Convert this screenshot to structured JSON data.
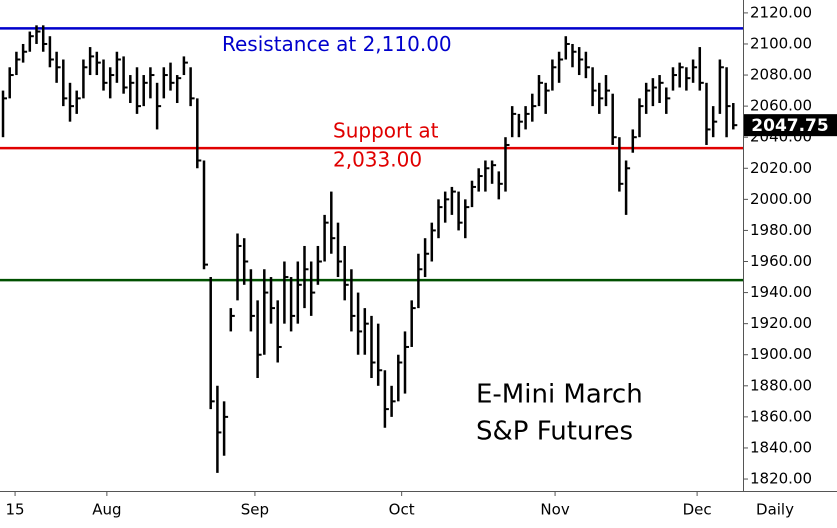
{
  "chart_data": {
    "type": "ohlc",
    "title_lines": [
      "E-Mini March",
      "S&P Futures"
    ],
    "period_label": "Daily",
    "color": "#000000",
    "high": [
      2070,
      2085,
      2095,
      2100,
      2108,
      2112,
      2112,
      2105,
      2095,
      2090,
      2075,
      2070,
      2090,
      2098,
      2095,
      2090,
      2085,
      2095,
      2092,
      2080,
      2085,
      2080,
      2085,
      2075,
      2085,
      2088,
      2080,
      2092,
      2085,
      2065,
      2025,
      1950,
      1880,
      1870,
      1930,
      1978,
      1975,
      1955,
      1935,
      1955,
      1950,
      1935,
      1960,
      1950,
      1960,
      1970,
      1960,
      1970,
      1990,
      2005,
      1985,
      1970,
      1955,
      1940,
      1930,
      1925,
      1920,
      1890,
      1880,
      1900,
      1915,
      1935,
      1965,
      1975,
      1985,
      2000,
      2005,
      2008,
      2005,
      2000,
      2012,
      2020,
      2025,
      2025,
      2018,
      2040,
      2060,
      2055,
      2060,
      2068,
      2080,
      2075,
      2090,
      2095,
      2105,
      2100,
      2098,
      2095,
      2085,
      2075,
      2080,
      2068,
      2040,
      2025,
      2045,
      2065,
      2075,
      2078,
      2080,
      2072,
      2085,
      2088,
      2085,
      2090,
      2098,
      2075,
      2060,
      2090,
      2085,
      2062
    ],
    "low": [
      2040,
      2065,
      2080,
      2088,
      2095,
      2100,
      2095,
      2085,
      2075,
      2060,
      2050,
      2055,
      2065,
      2080,
      2080,
      2070,
      2065,
      2075,
      2068,
      2062,
      2055,
      2060,
      2065,
      2045,
      2065,
      2070,
      2062,
      2080,
      2060,
      2020,
      1955,
      1865,
      1824,
      1835,
      1915,
      1935,
      1945,
      1915,
      1885,
      1900,
      1920,
      1895,
      1920,
      1915,
      1920,
      1930,
      1925,
      1945,
      1960,
      1965,
      1950,
      1935,
      1915,
      1900,
      1900,
      1885,
      1880,
      1853,
      1860,
      1870,
      1875,
      1905,
      1930,
      1950,
      1960,
      1975,
      1985,
      1990,
      1980,
      1975,
      1995,
      2005,
      2005,
      2010,
      2000,
      2005,
      2040,
      2040,
      2045,
      2050,
      2060,
      2055,
      2070,
      2075,
      2090,
      2085,
      2080,
      2078,
      2060,
      2055,
      2060,
      2035,
      2005,
      1990,
      2030,
      2040,
      2055,
      2060,
      2062,
      2055,
      2070,
      2072,
      2070,
      2075,
      2070,
      2035,
      2040,
      2055,
      2040,
      2045
    ],
    "close": [
      2065,
      2080,
      2090,
      2095,
      2105,
      2108,
      2100,
      2090,
      2085,
      2065,
      2060,
      2065,
      2085,
      2092,
      2088,
      2075,
      2080,
      2090,
      2072,
      2075,
      2060,
      2075,
      2080,
      2060,
      2080,
      2075,
      2078,
      2088,
      2065,
      2025,
      1958,
      1870,
      1850,
      1860,
      1925,
      1970,
      1960,
      1925,
      1900,
      1940,
      1930,
      1905,
      1950,
      1925,
      1945,
      1955,
      1940,
      1960,
      1985,
      1975,
      1960,
      1945,
      1925,
      1915,
      1920,
      1895,
      1890,
      1865,
      1870,
      1895,
      1905,
      1930,
      1955,
      1965,
      1980,
      1995,
      2000,
      2005,
      1985,
      1995,
      2008,
      2015,
      2020,
      2022,
      2010,
      2035,
      2055,
      2050,
      2055,
      2060,
      2075,
      2070,
      2085,
      2090,
      2100,
      2095,
      2090,
      2085,
      2070,
      2065,
      2070,
      2040,
      2010,
      2020,
      2040,
      2060,
      2070,
      2072,
      2075,
      2065,
      2080,
      2085,
      2078,
      2085,
      2075,
      2045,
      2050,
      2085,
      2060,
      2047.75
    ],
    "levels": [
      {
        "name": "Resistance at 2,110.00",
        "value": 2110,
        "color": "#0000cc"
      },
      {
        "name": "Support at",
        "name2": "2,033.00",
        "value": 2033,
        "color": "#e00000"
      },
      {
        "value": 1948,
        "color": "#005000"
      }
    ],
    "xlim": [
      -0.45,
      110.45
    ],
    "xticks": [
      {
        "value": 1.8,
        "label": "15"
      },
      {
        "value": 15.5,
        "label": "Aug"
      },
      {
        "value": 37.6,
        "label": "Sep"
      },
      {
        "value": 59.5,
        "label": "Oct"
      },
      {
        "value": 82.4,
        "label": "Nov"
      },
      {
        "value": 103.6,
        "label": "Dec"
      }
    ],
    "ylim": [
      1812.3,
      2128.3
    ],
    "yticks": [
      {
        "value": 1820,
        "label": "1820.00"
      },
      {
        "value": 1840,
        "label": "1840.00"
      },
      {
        "value": 1860,
        "label": "1860.00"
      },
      {
        "value": 1880,
        "label": "1880.00"
      },
      {
        "value": 1900,
        "label": "1900.00"
      },
      {
        "value": 1920,
        "label": "1920.00"
      },
      {
        "value": 1940,
        "label": "1940.00"
      },
      {
        "value": 1960,
        "label": "1960.00"
      },
      {
        "value": 1980,
        "label": "1980.00"
      },
      {
        "value": 2000,
        "label": "2000.00"
      },
      {
        "value": 2020,
        "label": "2020.00"
      },
      {
        "value": 2040,
        "label": "2040.00"
      },
      {
        "value": 2060,
        "label": "2060.00"
      },
      {
        "value": 2080,
        "label": "2080.00"
      },
      {
        "value": 2100,
        "label": "2100.00"
      },
      {
        "value": 2120,
        "label": "2120.00"
      }
    ]
  }
}
